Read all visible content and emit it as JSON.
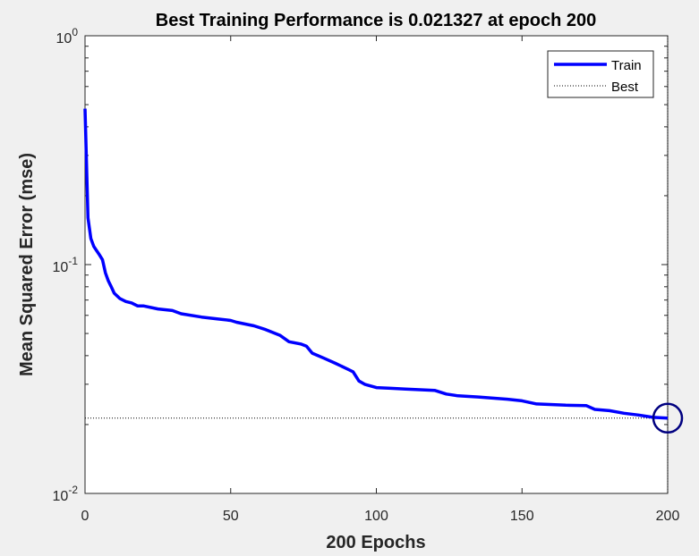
{
  "chart_data": {
    "type": "line",
    "title": "Best Training Performance is 0.021327 at epoch 200",
    "xlabel": "200 Epochs",
    "ylabel": "Mean Squared Error  (mse)",
    "xlim": [
      0,
      200
    ],
    "ylim": [
      0.01,
      1
    ],
    "yscale": "log",
    "grid": false,
    "legend_position": "top-right",
    "x_ticks": [
      0,
      50,
      100,
      150,
      200
    ],
    "y_ticks": [
      {
        "value": 1,
        "base": "10",
        "exponent": "0"
      },
      {
        "value": 0.1,
        "base": "10",
        "exponent": "-1"
      },
      {
        "value": 0.01,
        "base": "10",
        "exponent": "-2"
      }
    ],
    "series": [
      {
        "name": "Train",
        "color": "#0000ff",
        "x": [
          0,
          1,
          2,
          3,
          4,
          5,
          6,
          7,
          8,
          9,
          10,
          12,
          14,
          16,
          18,
          20,
          25,
          30,
          33,
          40,
          45,
          50,
          52,
          55,
          58,
          62,
          67,
          70,
          74,
          76,
          78,
          82,
          86,
          88,
          90,
          92,
          94,
          96,
          100,
          105,
          110,
          120,
          124,
          128,
          135,
          145,
          150,
          155,
          165,
          172,
          175,
          180,
          185,
          190,
          195,
          200
        ],
        "y": [
          0.48,
          0.16,
          0.13,
          0.12,
          0.115,
          0.11,
          0.105,
          0.092,
          0.085,
          0.08,
          0.075,
          0.071,
          0.069,
          0.068,
          0.066,
          0.066,
          0.064,
          0.063,
          0.061,
          0.059,
          0.058,
          0.057,
          0.056,
          0.055,
          0.054,
          0.052,
          0.049,
          0.046,
          0.045,
          0.044,
          0.041,
          0.039,
          0.037,
          0.036,
          0.035,
          0.034,
          0.031,
          0.03,
          0.029,
          0.0288,
          0.0286,
          0.0282,
          0.0272,
          0.0267,
          0.0264,
          0.0258,
          0.0254,
          0.0246,
          0.0243,
          0.0242,
          0.0233,
          0.023,
          0.0224,
          0.022,
          0.0215,
          0.021327
        ]
      },
      {
        "name": "Best",
        "color": "#000000",
        "style": "dotted",
        "y_constant": 0.021327,
        "x_constant": 200
      }
    ],
    "best_marker": {
      "x": 200,
      "y": 0.021327,
      "color": "#000080"
    }
  }
}
